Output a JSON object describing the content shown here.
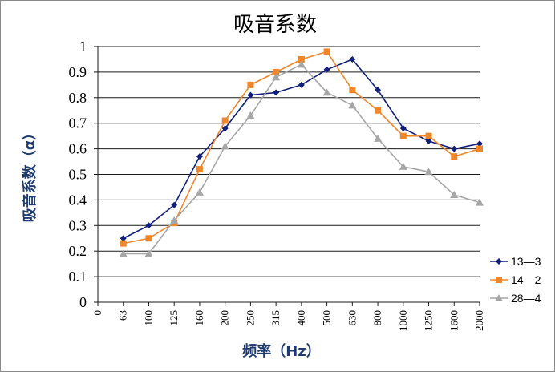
{
  "chart_data": {
    "type": "line",
    "title": "吸音系数",
    "xlabel": "频率（Hz）",
    "ylabel": "吸音系数（α）",
    "categories": [
      "0",
      "63",
      "100",
      "125",
      "160",
      "200",
      "250",
      "315",
      "400",
      "500",
      "630",
      "800",
      "1000",
      "1250",
      "1600",
      "2000"
    ],
    "yticks": [
      "0",
      "0.1",
      "0.2",
      "0.3",
      "0.4",
      "0.5",
      "0.6",
      "0.7",
      "0.8",
      "0.9",
      "1"
    ],
    "ylim": [
      0,
      1
    ],
    "grid": true,
    "legend_position": "right",
    "series": [
      {
        "name": "13—3",
        "color": "#0f1f7a",
        "marker": "diamond",
        "values": [
          null,
          0.25,
          0.3,
          0.38,
          0.57,
          0.68,
          0.81,
          0.82,
          0.85,
          0.91,
          0.95,
          0.83,
          0.68,
          0.63,
          0.6,
          0.62
        ]
      },
      {
        "name": "14—2",
        "color": "#f0862a",
        "marker": "square",
        "values": [
          null,
          0.23,
          0.25,
          0.31,
          0.52,
          0.71,
          0.85,
          0.9,
          0.95,
          0.98,
          0.83,
          0.75,
          0.65,
          0.65,
          0.57,
          0.6
        ]
      },
      {
        "name": "28—4",
        "color": "#a6a6a6",
        "marker": "triangle",
        "values": [
          null,
          0.19,
          0.19,
          0.32,
          0.43,
          0.61,
          0.73,
          0.88,
          0.93,
          0.82,
          0.77,
          0.64,
          0.53,
          0.51,
          0.42,
          0.39
        ]
      }
    ]
  }
}
